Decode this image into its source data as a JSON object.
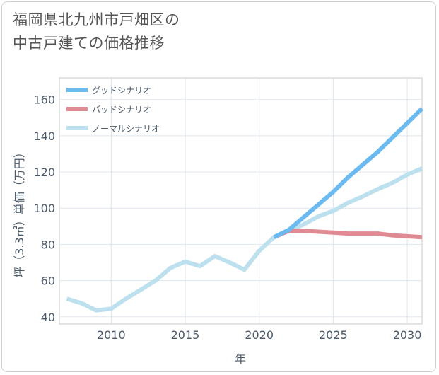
{
  "title_lines": [
    "福岡県北九州市戸畑区の",
    "中古戸建ての価格推移"
  ],
  "chart_data": {
    "type": "line",
    "xlabel": "年",
    "ylabel": "坪（3.3㎡）単価（万円）",
    "xlim": [
      2006.5,
      2031
    ],
    "ylim": [
      36,
      172
    ],
    "x_ticks": [
      2010,
      2015,
      2020,
      2025,
      2030
    ],
    "y_ticks": [
      40,
      60,
      80,
      100,
      120,
      140,
      160
    ],
    "grid": true,
    "legend_position": "top-left",
    "series": [
      {
        "name": "グッドシナリオ",
        "color": "#6bbaf0",
        "x": [
          2021,
          2022,
          2023,
          2024,
          2025,
          2026,
          2027,
          2028,
          2029,
          2030,
          2031
        ],
        "y": [
          84,
          88,
          95,
          102,
          109,
          117,
          124,
          131,
          139,
          147,
          155
        ]
      },
      {
        "name": "バッドシナリオ",
        "color": "#e08a94",
        "x": [
          2021,
          2022,
          2023,
          2024,
          2025,
          2026,
          2027,
          2028,
          2029,
          2030,
          2031
        ],
        "y": [
          84,
          87.5,
          87.5,
          87,
          86.5,
          86,
          86,
          86,
          85,
          84.5,
          84
        ]
      },
      {
        "name": "ノーマルシナリオ",
        "color": "#bde0ee",
        "x": [
          2007,
          2008,
          2009,
          2010,
          2011,
          2012,
          2013,
          2014,
          2015,
          2016,
          2017,
          2018,
          2019,
          2020,
          2021,
          2022,
          2023,
          2024,
          2025,
          2026,
          2027,
          2028,
          2029,
          2030,
          2031
        ],
        "y": [
          50,
          47.5,
          43.5,
          44.5,
          50,
          55,
          60,
          67,
          70.5,
          68,
          73.5,
          70,
          66,
          76.5,
          84,
          87.5,
          91,
          95.5,
          98.5,
          103,
          106.5,
          110.5,
          114,
          118.5,
          122
        ]
      }
    ]
  }
}
